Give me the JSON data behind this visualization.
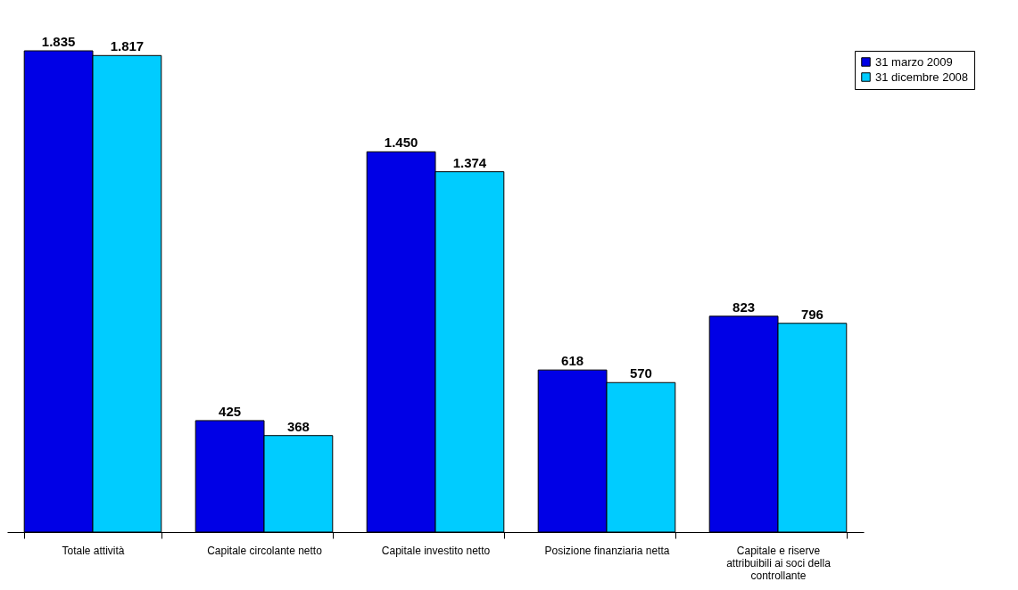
{
  "chart_data": {
    "type": "bar",
    "categories": [
      "Totale attività",
      "Capitale circolante netto",
      "Capitale investito netto",
      "Posizione finanziaria netta",
      "Capitale e riserve attribuibili ai soci della controllante"
    ],
    "series": [
      {
        "name": "31 marzo 2009",
        "color": "#0000e6",
        "values": [
          1835,
          425,
          1450,
          618,
          823
        ],
        "value_labels": [
          "1.835",
          "425",
          "1.450",
          "618",
          "823"
        ]
      },
      {
        "name": "31 dicembre 2008",
        "color": "#00ccff",
        "values": [
          1817,
          368,
          1374,
          570,
          796
        ],
        "value_labels": [
          "1.817",
          "368",
          "1.374",
          "570",
          "796"
        ]
      }
    ],
    "legend": "right",
    "grid": false,
    "tick_labels": "x"
  }
}
